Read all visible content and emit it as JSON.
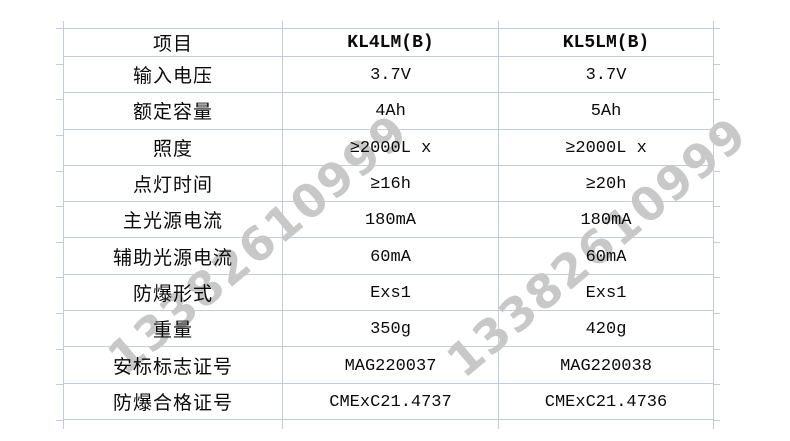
{
  "watermark": {
    "text": "13382610999",
    "color": "#c8c8c8"
  },
  "grid_color": "#c3ccda",
  "table": {
    "header": [
      "项目",
      "KL4LM(B)",
      "KL5LM(B)"
    ],
    "rows": [
      [
        "输入电压",
        "3.7V",
        "3.7V"
      ],
      [
        "额定容量",
        "4Ah",
        "5Ah"
      ],
      [
        "照度",
        "≥2000L x",
        "≥2000L x"
      ],
      [
        "点灯时间",
        "≥16h",
        "≥20h"
      ],
      [
        "主光源电流",
        "180mA",
        "180mA"
      ],
      [
        "辅助光源电流",
        "60mA",
        "60mA"
      ],
      [
        "防爆形式",
        "Exs1",
        "Exs1"
      ],
      [
        "重量",
        "350g",
        "420g"
      ],
      [
        "安标标志证号",
        "MAG220037",
        "MAG220038"
      ],
      [
        "防爆合格证号",
        "CMExC21.4737",
        "CMExC21.4736"
      ]
    ]
  }
}
